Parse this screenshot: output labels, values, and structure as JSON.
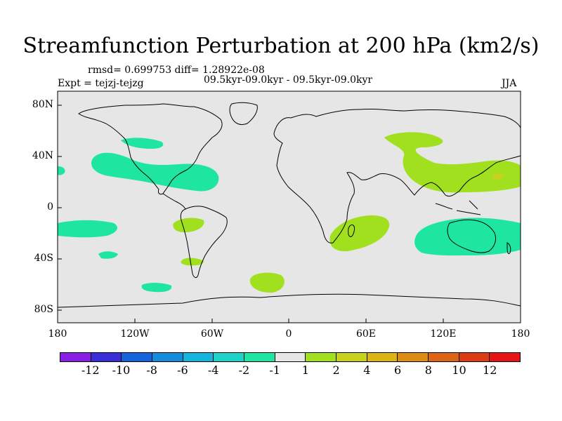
{
  "title": "Streamfunction Perturbation at 200 hPa (km2/s)",
  "stats": "rmsd= 0.699753 diff= 1.28922e-08",
  "expt": "Expt = tejzj-tejzg",
  "period": "09.5kyr-09.0kyr - 09.5kyr-09.0kyr",
  "season": "JJA",
  "axes": {
    "y_labels": [
      "80N",
      "40N",
      "0",
      "40S",
      "80S"
    ],
    "x_labels": [
      "180",
      "120W",
      "60W",
      "0",
      "60E",
      "120E",
      "180"
    ]
  },
  "colorbar": {
    "labels": [
      "-12",
      "-10",
      "-8",
      "-6",
      "-4",
      "-2",
      "-1",
      "1",
      "2",
      "4",
      "6",
      "8",
      "10",
      "12"
    ],
    "colors": [
      "#8a1fe6",
      "#3a2fd6",
      "#1464dc",
      "#148cdc",
      "#14b4dc",
      "#1ed2c8",
      "#1ee6a0",
      "#e6e6e6",
      "#a0e01e",
      "#c8d21e",
      "#dcb414",
      "#dc8c14",
      "#dc6414",
      "#dc3c14",
      "#e61414"
    ]
  },
  "colors": {
    "ocean": "#e6e6e6",
    "positive_1_2": "#a0e01e",
    "negative_1_2": "#1ee6a0",
    "positive_2_4": "#c8d21e"
  }
}
